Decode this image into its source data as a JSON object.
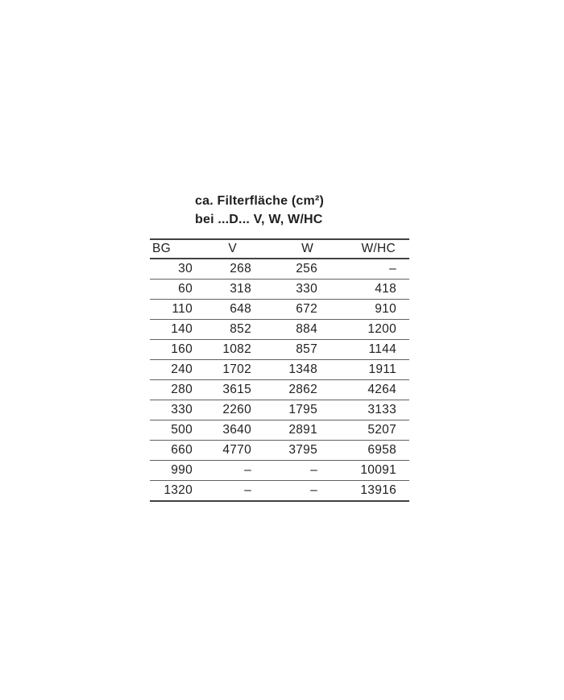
{
  "title": {
    "line1": "ca. Filterfläche (cm²)",
    "line2": "bei ...D... V, W, W/HC"
  },
  "table": {
    "columns": [
      "BG",
      "V",
      "W",
      "W/HC"
    ],
    "rows": [
      [
        "30",
        "268",
        "256",
        "–"
      ],
      [
        "60",
        "318",
        "330",
        "418"
      ],
      [
        "110",
        "648",
        "672",
        "910"
      ],
      [
        "140",
        "852",
        "884",
        "1200"
      ],
      [
        "160",
        "1082",
        "857",
        "1144"
      ],
      [
        "240",
        "1702",
        "1348",
        "1911"
      ],
      [
        "280",
        "3615",
        "2862",
        "4264"
      ],
      [
        "330",
        "2260",
        "1795",
        "3133"
      ],
      [
        "500",
        "3640",
        "2891",
        "5207"
      ],
      [
        "660",
        "4770",
        "3795",
        "6958"
      ],
      [
        "990",
        "–",
        "–",
        "10091"
      ],
      [
        "1320",
        "–",
        "–",
        "13916"
      ]
    ]
  },
  "colors": {
    "text": "#1f1f21",
    "rule_heavy": "#424244",
    "rule_light": "#616163",
    "background": "#ffffff"
  }
}
